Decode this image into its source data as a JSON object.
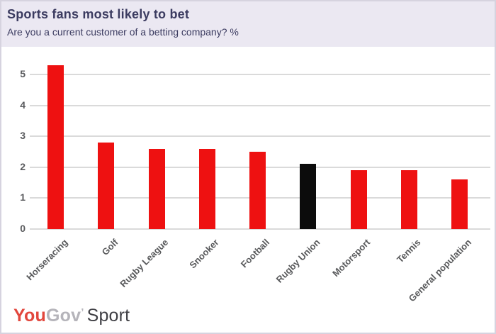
{
  "header": {
    "title": "Sports fans most likely to bet",
    "subtitle": "Are you a current customer of a betting company? %"
  },
  "chart_data": {
    "type": "bar",
    "title": "Sports fans most likely to bet",
    "subtitle": "Are you a current customer of a betting company? %",
    "categories": [
      "Horseracing",
      "Golf",
      "Rugby League",
      "Snooker",
      "Football",
      "Rugby Union",
      "Motorsport",
      "Tennis",
      "General population"
    ],
    "values": [
      5.3,
      2.8,
      2.6,
      2.6,
      2.5,
      2.1,
      1.9,
      1.9,
      1.6
    ],
    "bar_colors": [
      "#ee1111",
      "#ee1111",
      "#ee1111",
      "#ee1111",
      "#ee1111",
      "#0c0c0c",
      "#ee1111",
      "#ee1111",
      "#ee1111"
    ],
    "highlight_category": "Rugby Union",
    "xlabel": "",
    "ylabel": "",
    "yticks": [
      0,
      1,
      2,
      3,
      4,
      5
    ],
    "ylim": [
      0,
      5.5
    ],
    "grid": true,
    "legend": false,
    "x_tick_rotation": 45
  },
  "colors": {
    "header_bg": "#ebe8f2",
    "card_bg": "#ffffff",
    "card_border": "#d6d3df",
    "title_text": "#3b3b60",
    "axis_text": "#58595b",
    "gridline": "#dadada",
    "bar_red": "#ee1111",
    "bar_black": "#0c0c0c",
    "logo_red": "#e2473d",
    "logo_gray": "#b5b4ba",
    "logo_dark": "#3f3f44"
  },
  "footer": {
    "logo": {
      "part1": "You",
      "part2": "Gov",
      "apostrophe": "’",
      "part3": "Sport"
    }
  }
}
